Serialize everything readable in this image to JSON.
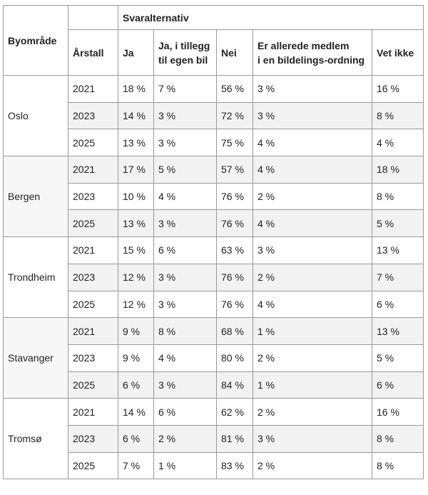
{
  "table": {
    "corner_header": "Byområde",
    "group_header": "Svaralternativ",
    "columns": [
      "Årstall",
      "Ja",
      "Ja, i tillegg til egen bil",
      "Nei",
      "Er allerede medlem i en bildelings-ordning",
      "Vet ikke"
    ],
    "column_lines": {
      "col2": [
        "Ja, i tillegg",
        "til egen bil"
      ],
      "col4": [
        "Er allerede medlem",
        "i en bildelings-ordning"
      ]
    },
    "groups": [
      {
        "city": "Oslo",
        "rows": [
          {
            "year": "2021",
            "ja": "18 %",
            "ja_bil": "7 %",
            "nei": "56 %",
            "medlem": "3 %",
            "vet_ikke": "16 %"
          },
          {
            "year": "2023",
            "ja": "14 %",
            "ja_bil": "3 %",
            "nei": "72 %",
            "medlem": "3 %",
            "vet_ikke": "8 %"
          },
          {
            "year": "2025",
            "ja": "13 %",
            "ja_bil": "3 %",
            "nei": "75 %",
            "medlem": "4 %",
            "vet_ikke": "4 %"
          }
        ]
      },
      {
        "city": "Bergen",
        "rows": [
          {
            "year": "2021",
            "ja": "17 %",
            "ja_bil": "5 %",
            "nei": "57 %",
            "medlem": "4 %",
            "vet_ikke": "18 %"
          },
          {
            "year": "2023",
            "ja": "10 %",
            "ja_bil": "4 %",
            "nei": "76 %",
            "medlem": "2 %",
            "vet_ikke": "8 %"
          },
          {
            "year": "2025",
            "ja": "13 %",
            "ja_bil": "3 %",
            "nei": "76 %",
            "medlem": "4 %",
            "vet_ikke": "5 %"
          }
        ]
      },
      {
        "city": "Trondheim",
        "rows": [
          {
            "year": "2021",
            "ja": "15 %",
            "ja_bil": "6 %",
            "nei": "63 %",
            "medlem": "3 %",
            "vet_ikke": "13 %"
          },
          {
            "year": "2023",
            "ja": "12 %",
            "ja_bil": "3 %",
            "nei": "76 %",
            "medlem": "2 %",
            "vet_ikke": "7 %"
          },
          {
            "year": "2025",
            "ja": "12 %",
            "ja_bil": "3 %",
            "nei": "76 %",
            "medlem": "4 %",
            "vet_ikke": "6 %"
          }
        ]
      },
      {
        "city": "Stavanger",
        "rows": [
          {
            "year": "2021",
            "ja": "9 %",
            "ja_bil": "8 %",
            "nei": "68 %",
            "medlem": "1 %",
            "vet_ikke": "13 %"
          },
          {
            "year": "2023",
            "ja": "9 %",
            "ja_bil": "4 %",
            "nei": "80 %",
            "medlem": "2 %",
            "vet_ikke": "5 %"
          },
          {
            "year": "2025",
            "ja": "6 %",
            "ja_bil": "3 %",
            "nei": "84 %",
            "medlem": "1 %",
            "vet_ikke": "6 %"
          }
        ]
      },
      {
        "city": "Tromsø",
        "rows": [
          {
            "year": "2021",
            "ja": "14 %",
            "ja_bil": "6 %",
            "nei": "62 %",
            "medlem": "2 %",
            "vet_ikke": "16 %"
          },
          {
            "year": "2023",
            "ja": "6 %",
            "ja_bil": "2 %",
            "nei": "81 %",
            "medlem": "3 %",
            "vet_ikke": "8 %"
          },
          {
            "year": "2025",
            "ja": "7 %",
            "ja_bil": "1 %",
            "nei": "83 %",
            "medlem": "2 %",
            "vet_ikke": "8 %"
          }
        ]
      }
    ]
  }
}
